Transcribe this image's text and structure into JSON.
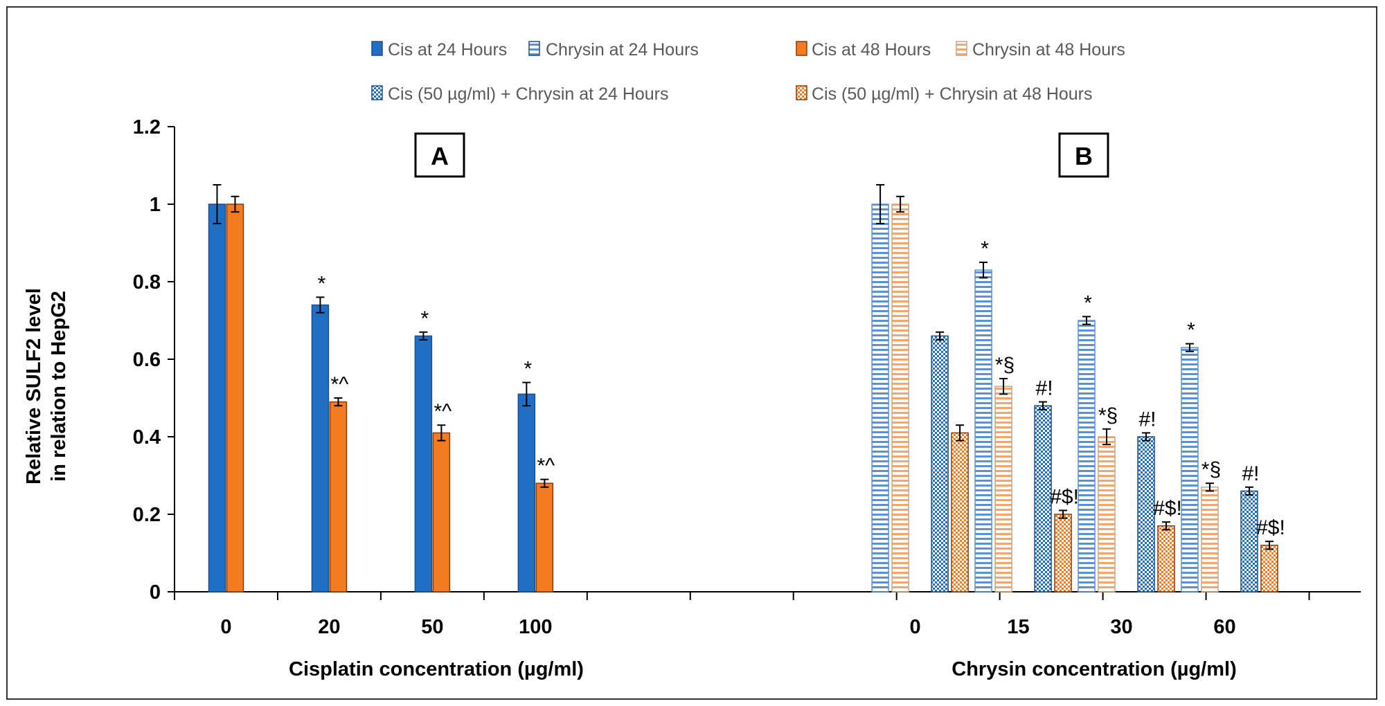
{
  "colors": {
    "blue": "#1f6fc6",
    "blue_border": "#1f4e8c",
    "orange": "#f47b20",
    "orange_border": "#8a3a06",
    "axis": "#000000",
    "frame": "#333333"
  },
  "chart_data": {
    "type": "bar",
    "ylabel_line1": "Relative SULF2 level",
    "ylabel_line2": "in relation to HepG2",
    "ylim": [
      0,
      1.2
    ],
    "yticks": [
      "0",
      "0.2",
      "0.4",
      "0.6",
      "0.8",
      "1",
      "1.2"
    ],
    "legend": [
      {
        "label": "Cis at 24 Hours",
        "pattern": "solid-blue"
      },
      {
        "label": "Chrysin at 24 Hours",
        "pattern": "hstripe-blue"
      },
      {
        "label": "Cis at 48 Hours",
        "pattern": "solid-orange"
      },
      {
        "label": "Chrysin at 48 Hours",
        "pattern": "hstripe-orange"
      },
      {
        "label": "Cis (50 µg/ml) + Chrysin at 24 Hours",
        "pattern": "check-blue"
      },
      {
        "label": "Cis (50 µg/ml) + Chrysin at 48 Hours",
        "pattern": "check-orange"
      }
    ],
    "panels": [
      {
        "label": "A",
        "xlabel": "Cisplatin concentration (µg/ml)",
        "categories": [
          "0",
          "20",
          "50",
          "100"
        ],
        "bars": [
          {
            "cat": 0,
            "series": "Cis at 24 Hours",
            "pattern": "solid-blue",
            "value": 1.0,
            "err": 0.05,
            "annot": ""
          },
          {
            "cat": 0,
            "series": "Cis at 48 Hours",
            "pattern": "solid-orange",
            "value": 1.0,
            "err": 0.02,
            "annot": ""
          },
          {
            "cat": 1,
            "series": "Cis at 24 Hours",
            "pattern": "solid-blue",
            "value": 0.74,
            "err": 0.02,
            "annot": "*"
          },
          {
            "cat": 1,
            "series": "Cis at 48 Hours",
            "pattern": "solid-orange",
            "value": 0.49,
            "err": 0.01,
            "annot": "*^"
          },
          {
            "cat": 2,
            "series": "Cis at 24 Hours",
            "pattern": "solid-blue",
            "value": 0.66,
            "err": 0.01,
            "annot": "*"
          },
          {
            "cat": 2,
            "series": "Cis at 48 Hours",
            "pattern": "solid-orange",
            "value": 0.41,
            "err": 0.02,
            "annot": "*^"
          },
          {
            "cat": 3,
            "series": "Cis at 24 Hours",
            "pattern": "solid-blue",
            "value": 0.51,
            "err": 0.03,
            "annot": "*"
          },
          {
            "cat": 3,
            "series": "Cis at 48 Hours",
            "pattern": "solid-orange",
            "value": 0.28,
            "err": 0.01,
            "annot": "*^"
          }
        ]
      },
      {
        "label": "B",
        "xlabel": "Chrysin concentration (µg/ml)",
        "categories": [
          "0",
          "15",
          "30",
          "60"
        ],
        "bars": [
          {
            "cat": 0,
            "series": "Chrysin at 24 Hours",
            "pattern": "hstripe-blue",
            "value": 1.0,
            "err": 0.05,
            "annot": ""
          },
          {
            "cat": 0,
            "series": "Chrysin at 48 Hours",
            "pattern": "hstripe-orange",
            "value": 1.0,
            "err": 0.02,
            "annot": ""
          },
          {
            "cat": 0,
            "series": "Cis (50 µg/ml) + Chrysin at 24 Hours",
            "pattern": "check-blue",
            "value": 0.66,
            "err": 0.01,
            "annot": ""
          },
          {
            "cat": 0,
            "series": "Cis (50 µg/ml) + Chrysin at 48 Hours",
            "pattern": "check-orange",
            "value": 0.41,
            "err": 0.02,
            "annot": ""
          },
          {
            "cat": 1,
            "series": "Chrysin at 24 Hours",
            "pattern": "hstripe-blue",
            "value": 0.83,
            "err": 0.02,
            "annot": "*"
          },
          {
            "cat": 1,
            "series": "Chrysin at 48 Hours",
            "pattern": "hstripe-orange",
            "value": 0.53,
            "err": 0.02,
            "annot": "*§"
          },
          {
            "cat": 1,
            "series": "Cis (50 µg/ml) + Chrysin at 24 Hours",
            "pattern": "check-blue",
            "value": 0.48,
            "err": 0.01,
            "annot": "#!"
          },
          {
            "cat": 1,
            "series": "Cis (50 µg/ml) + Chrysin at 48 Hours",
            "pattern": "check-orange",
            "value": 0.2,
            "err": 0.01,
            "annot": "#$!"
          },
          {
            "cat": 2,
            "series": "Chrysin at 24 Hours",
            "pattern": "hstripe-blue",
            "value": 0.7,
            "err": 0.01,
            "annot": "*"
          },
          {
            "cat": 2,
            "series": "Chrysin at 48 Hours",
            "pattern": "hstripe-orange",
            "value": 0.4,
            "err": 0.02,
            "annot": "*§"
          },
          {
            "cat": 2,
            "series": "Cis (50 µg/ml) + Chrysin at 24 Hours",
            "pattern": "check-blue",
            "value": 0.4,
            "err": 0.01,
            "annot": "#!"
          },
          {
            "cat": 2,
            "series": "Cis (50 µg/ml) + Chrysin at 48 Hours",
            "pattern": "check-orange",
            "value": 0.17,
            "err": 0.01,
            "annot": "#$!"
          },
          {
            "cat": 3,
            "series": "Chrysin at 24 Hours",
            "pattern": "hstripe-blue",
            "value": 0.63,
            "err": 0.01,
            "annot": "*"
          },
          {
            "cat": 3,
            "series": "Chrysin at 48 Hours",
            "pattern": "hstripe-orange",
            "value": 0.27,
            "err": 0.01,
            "annot": "*§"
          },
          {
            "cat": 3,
            "series": "Cis (50 µg/ml) + Chrysin at 24 Hours",
            "pattern": "check-blue",
            "value": 0.26,
            "err": 0.01,
            "annot": "#!"
          },
          {
            "cat": 3,
            "series": "Cis (50 µg/ml) + Chrysin at 48 Hours",
            "pattern": "check-orange",
            "value": 0.12,
            "err": 0.01,
            "annot": "#$!"
          }
        ]
      }
    ]
  }
}
